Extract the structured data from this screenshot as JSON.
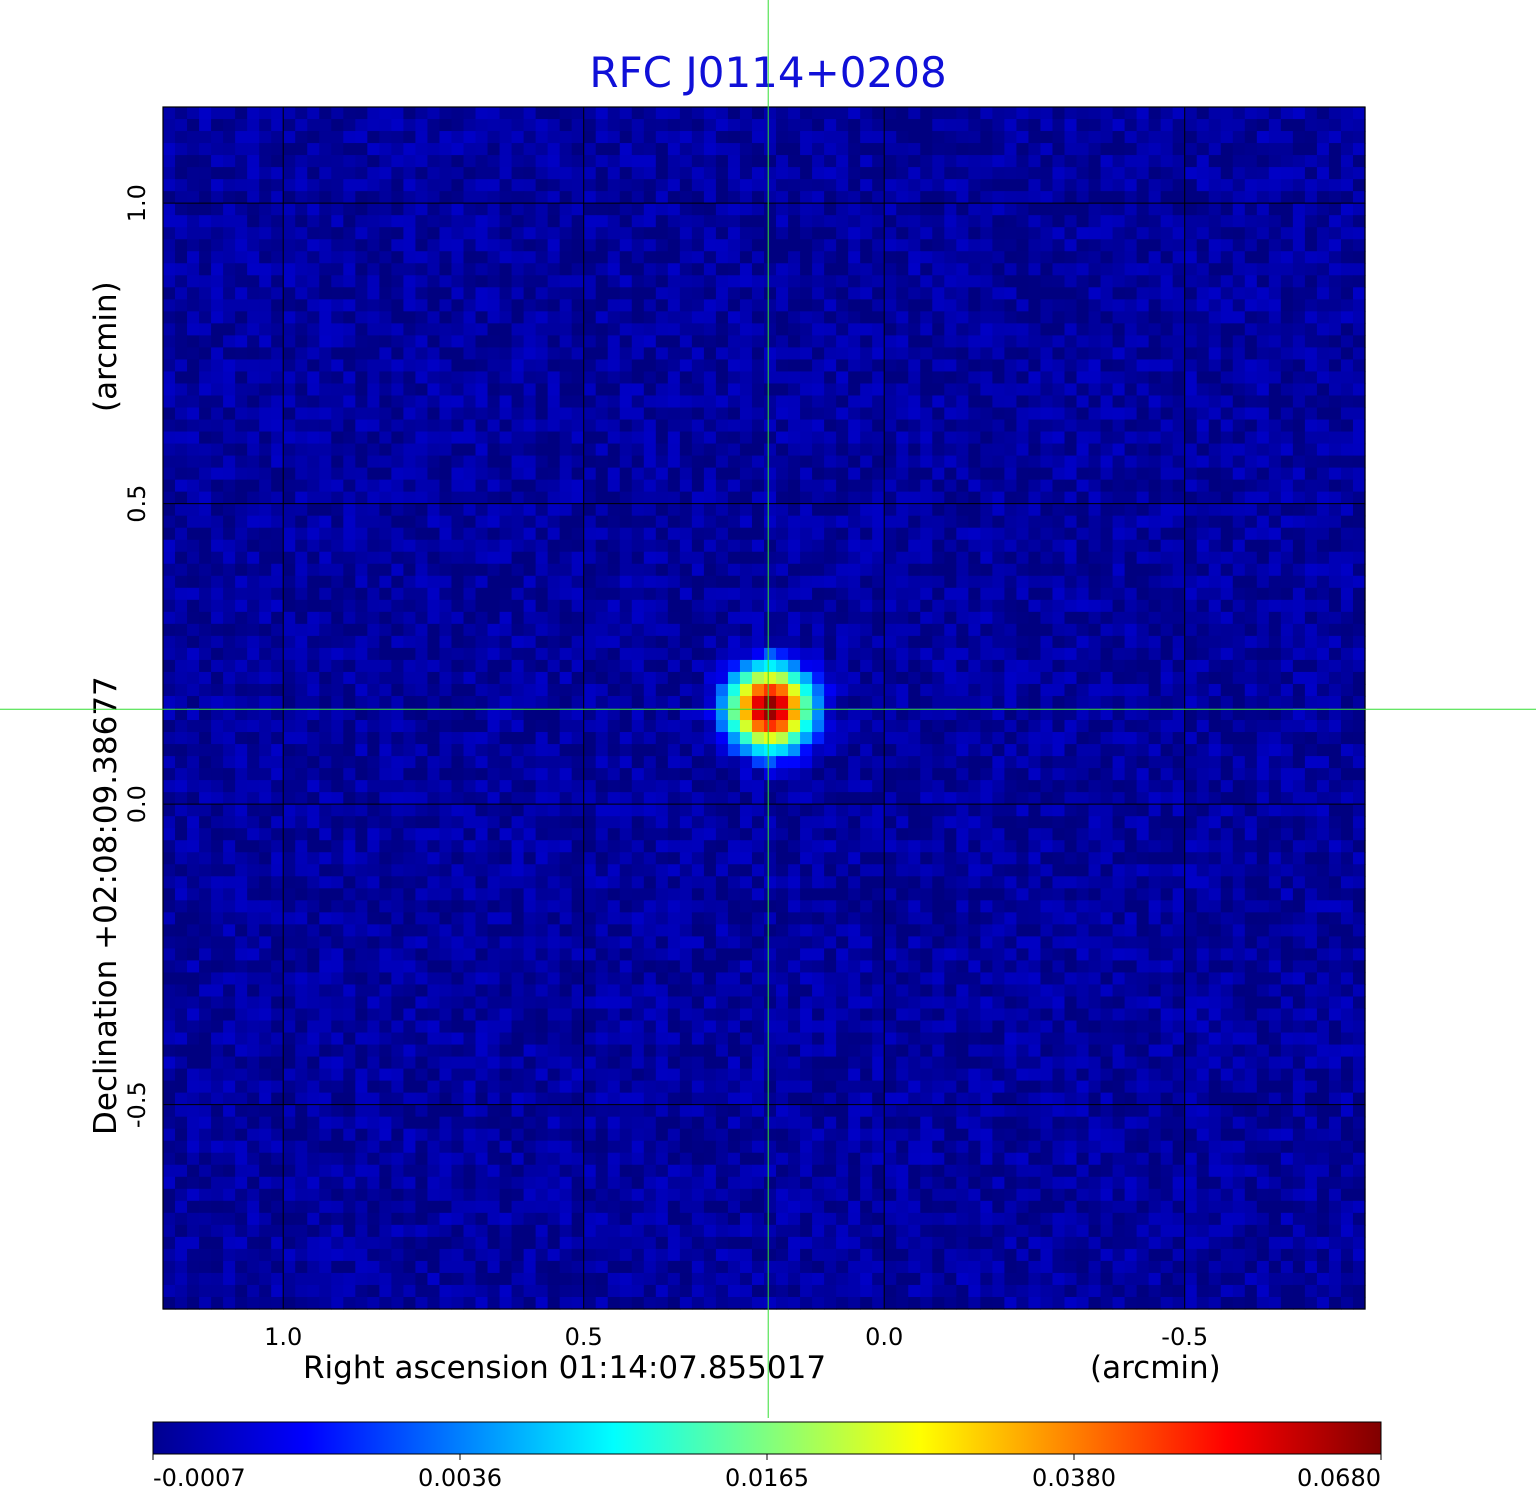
{
  "chart_data": {
    "type": "heatmap",
    "title": "RFC J0114+0208",
    "xlabel": "Right ascension  01:14:07.855017",
    "xunit": "(arcmin)",
    "ylabel": "Declination  +02:08:09.38677",
    "yunit": "(arcmin)",
    "x_ticks": [
      "1.0",
      "0.5",
      "0.0",
      "-0.5"
    ],
    "x_tick_values": [
      1.0,
      0.5,
      0.0,
      -0.5
    ],
    "y_ticks": [
      "1.0",
      "0.5",
      "0.0",
      "-0.5"
    ],
    "y_tick_values": [
      1.0,
      0.5,
      0.0,
      -0.5
    ],
    "xlim": [
      1.2,
      -0.8
    ],
    "ylim": [
      -0.84,
      1.16
    ],
    "x_reversed": true,
    "grid": true,
    "crosshair": {
      "x": 0.193,
      "y": 0.158,
      "color": "#33dd33"
    },
    "source_peak": {
      "x": 0.19,
      "y": 0.16,
      "value": 0.068,
      "sigma_arcmin": 0.035
    },
    "background_level": -0.0002,
    "colorbar": {
      "colormap": "jet",
      "tick_labels": [
        "-0.0007",
        "0.0036",
        "0.0165",
        "0.0380",
        "0.0680"
      ],
      "tick_values": [
        -0.0007,
        0.0036,
        0.0165,
        0.038,
        0.068
      ],
      "placement": "bottom"
    },
    "title_color": "#1010d8",
    "grid_color": "#000000"
  }
}
